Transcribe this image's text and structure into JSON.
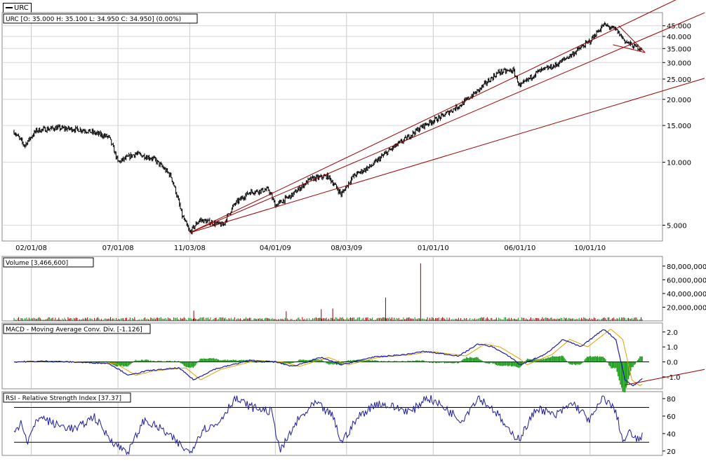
{
  "legend": {
    "symbol": "URC"
  },
  "colors": {
    "up": "#000000",
    "trend": "#9b0000",
    "macd": "#1c1c9c",
    "signal": "#d9a300",
    "hist": "#1a9e1a",
    "vol_up": "#1a8a1a",
    "vol_down": "#8b0000",
    "rsi": "#1c1c9c"
  },
  "chart_data": [
    {
      "type": "candlestick",
      "title": "URC [O: 35.000  H: 35.100  L: 34.950  C: 34.950] (0.00%)",
      "yscale": "log",
      "y_ticks": [
        "5.000",
        "10.000",
        "15.000",
        "20.000",
        "25.000",
        "30.000",
        "35.000",
        "40.000",
        "45.000"
      ],
      "y_tick_values": [
        5,
        10,
        15,
        20,
        25,
        30,
        35,
        40,
        45
      ],
      "ylim": [
        4.2,
        52
      ],
      "x_ticks": [
        "02/01/08",
        "07/01/08",
        "11/03/08",
        "04/01/09",
        "08/03/09",
        "01/01/10",
        "06/01/10",
        "10/01/10"
      ],
      "close_series": [
        {
          "date": "2008-01-02",
          "value": 14.0
        },
        {
          "date": "2008-01-20",
          "value": 12.0
        },
        {
          "date": "2008-02-10",
          "value": 14.2
        },
        {
          "date": "2008-03-15",
          "value": 14.6
        },
        {
          "date": "2008-05-01",
          "value": 14.3
        },
        {
          "date": "2008-06-15",
          "value": 13.2
        },
        {
          "date": "2008-07-01",
          "value": 10.0
        },
        {
          "date": "2008-08-01",
          "value": 11.0
        },
        {
          "date": "2008-09-01",
          "value": 10.4
        },
        {
          "date": "2008-10-01",
          "value": 8.6
        },
        {
          "date": "2008-10-20",
          "value": 5.6
        },
        {
          "date": "2008-11-03",
          "value": 4.6
        },
        {
          "date": "2008-11-20",
          "value": 5.3
        },
        {
          "date": "2008-12-31",
          "value": 5.0
        },
        {
          "date": "2009-01-20",
          "value": 6.3
        },
        {
          "date": "2009-02-15",
          "value": 7.2
        },
        {
          "date": "2009-03-20",
          "value": 7.4
        },
        {
          "date": "2009-04-01",
          "value": 6.2
        },
        {
          "date": "2009-05-01",
          "value": 7.0
        },
        {
          "date": "2009-06-01",
          "value": 8.3
        },
        {
          "date": "2009-07-01",
          "value": 8.6
        },
        {
          "date": "2009-07-25",
          "value": 7.0
        },
        {
          "date": "2009-08-15",
          "value": 8.6
        },
        {
          "date": "2009-09-15",
          "value": 9.6
        },
        {
          "date": "2009-10-15",
          "value": 11.3
        },
        {
          "date": "2009-11-15",
          "value": 13.0
        },
        {
          "date": "2009-12-15",
          "value": 15.0
        },
        {
          "date": "2010-01-15",
          "value": 16.5
        },
        {
          "date": "2010-02-20",
          "value": 19.0
        },
        {
          "date": "2010-03-20",
          "value": 22.0
        },
        {
          "date": "2010-04-25",
          "value": 27.0
        },
        {
          "date": "2010-05-20",
          "value": 27.5
        },
        {
          "date": "2010-06-01",
          "value": 23.0
        },
        {
          "date": "2010-07-01",
          "value": 27.0
        },
        {
          "date": "2010-08-01",
          "value": 29.0
        },
        {
          "date": "2010-09-01",
          "value": 33.0
        },
        {
          "date": "2010-10-01",
          "value": 38.0
        },
        {
          "date": "2010-10-25",
          "value": 45.5
        },
        {
          "date": "2010-11-15",
          "value": 43.0
        },
        {
          "date": "2010-12-01",
          "value": 38.0
        },
        {
          "date": "2010-12-15",
          "value": 36.0
        },
        {
          "date": "2010-12-31",
          "value": 34.95
        }
      ],
      "trendlines": [
        {
          "from": {
            "date": "2008-11-03",
            "value": 4.6
          },
          "to": {
            "date": "2011-01-12",
            "value": 52
          }
        },
        {
          "from": {
            "date": "2008-11-03",
            "value": 4.6
          },
          "to": {
            "date": "2011-01-12",
            "value": 40
          }
        },
        {
          "from": {
            "date": "2008-11-03",
            "value": 4.6
          },
          "to": {
            "date": "2011-01-12",
            "value": 21
          }
        },
        {
          "from": {
            "date": "2010-11-20",
            "value": 45.0
          },
          "to": {
            "date": "2011-01-05",
            "value": 33.5
          }
        },
        {
          "from": {
            "date": "2010-11-10",
            "value": 36.5
          },
          "to": {
            "date": "2011-01-05",
            "value": 33.5
          }
        }
      ]
    },
    {
      "type": "bar",
      "title": "Volume [3,466,600]",
      "y_ticks": [
        "20,000,000",
        "40,000,000",
        "60,000,000",
        "80,000,000"
      ],
      "y_tick_values": [
        20000000,
        40000000,
        60000000,
        80000000
      ],
      "ylim": [
        0,
        90000000
      ],
      "spikes": [
        {
          "date": "2008-11-10",
          "value": 15000000
        },
        {
          "date": "2009-04-20",
          "value": 14000000
        },
        {
          "date": "2009-06-20",
          "value": 17000000
        },
        {
          "date": "2009-07-10",
          "value": 18000000
        },
        {
          "date": "2009-10-10",
          "value": 34000000
        },
        {
          "date": "2009-12-10",
          "value": 84000000
        }
      ]
    },
    {
      "type": "line",
      "title": "MACD - Moving Average Conv. Div. [-1.126]",
      "y_ticks": [
        "-1.0",
        "0.0",
        "1.0",
        "2.0"
      ],
      "y_tick_values": [
        -1,
        0,
        1,
        2
      ],
      "ylim": [
        -1.8,
        2.6
      ],
      "macd_series": [
        {
          "date": "2008-01-02",
          "value": 0.0
        },
        {
          "date": "2008-03-01",
          "value": 0.05
        },
        {
          "date": "2008-06-15",
          "value": -0.1
        },
        {
          "date": "2008-07-20",
          "value": -0.9
        },
        {
          "date": "2008-08-20",
          "value": -0.6
        },
        {
          "date": "2008-10-15",
          "value": -0.4
        },
        {
          "date": "2008-11-10",
          "value": -1.2
        },
        {
          "date": "2008-12-15",
          "value": -0.5
        },
        {
          "date": "2009-02-15",
          "value": 0.1
        },
        {
          "date": "2009-04-01",
          "value": 0.0
        },
        {
          "date": "2009-05-01",
          "value": -0.3
        },
        {
          "date": "2009-06-20",
          "value": 0.3
        },
        {
          "date": "2009-07-25",
          "value": -0.2
        },
        {
          "date": "2009-09-15",
          "value": 0.3
        },
        {
          "date": "2009-11-15",
          "value": 0.5
        },
        {
          "date": "2009-12-15",
          "value": 0.7
        },
        {
          "date": "2010-02-15",
          "value": 0.4
        },
        {
          "date": "2010-03-20",
          "value": 1.2
        },
        {
          "date": "2010-04-15",
          "value": 1.0
        },
        {
          "date": "2010-05-20",
          "value": 0.2
        },
        {
          "date": "2010-06-01",
          "value": -0.2
        },
        {
          "date": "2010-07-15",
          "value": 0.5
        },
        {
          "date": "2010-08-15",
          "value": 1.5
        },
        {
          "date": "2010-09-15",
          "value": 1.0
        },
        {
          "date": "2010-10-25",
          "value": 2.2
        },
        {
          "date": "2010-11-15",
          "value": 1.5
        },
        {
          "date": "2010-12-01",
          "value": -1.2
        },
        {
          "date": "2010-12-15",
          "value": -1.6
        },
        {
          "date": "2010-12-31",
          "value": -1.126
        }
      ],
      "signal_offset_days": 12
    },
    {
      "type": "line",
      "title": "RSI - Relative Strength Index [37.37]",
      "y_ticks": [
        "20",
        "40",
        "60",
        "80"
      ],
      "y_tick_values": [
        20,
        40,
        60,
        80
      ],
      "ylim": [
        15,
        88
      ],
      "reference_lines": [
        30,
        70
      ],
      "rsi_series": [
        {
          "date": "2008-01-02",
          "value": 40
        },
        {
          "date": "2008-01-15",
          "value": 55
        },
        {
          "date": "2008-01-25",
          "value": 30
        },
        {
          "date": "2008-02-15",
          "value": 60
        },
        {
          "date": "2008-03-15",
          "value": 50
        },
        {
          "date": "2008-04-20",
          "value": 45
        },
        {
          "date": "2008-05-20",
          "value": 60
        },
        {
          "date": "2008-06-10",
          "value": 40
        },
        {
          "date": "2008-07-01",
          "value": 25
        },
        {
          "date": "2008-07-20",
          "value": 20
        },
        {
          "date": "2008-08-15",
          "value": 55
        },
        {
          "date": "2008-09-15",
          "value": 45
        },
        {
          "date": "2008-10-15",
          "value": 28
        },
        {
          "date": "2008-11-03",
          "value": 18
        },
        {
          "date": "2008-11-25",
          "value": 45
        },
        {
          "date": "2008-12-20",
          "value": 50
        },
        {
          "date": "2009-01-20",
          "value": 80
        },
        {
          "date": "2009-02-20",
          "value": 70
        },
        {
          "date": "2009-03-25",
          "value": 65
        },
        {
          "date": "2009-04-10",
          "value": 20
        },
        {
          "date": "2009-05-10",
          "value": 55
        },
        {
          "date": "2009-06-10",
          "value": 75
        },
        {
          "date": "2009-07-10",
          "value": 60
        },
        {
          "date": "2009-07-25",
          "value": 30
        },
        {
          "date": "2009-08-25",
          "value": 60
        },
        {
          "date": "2009-09-25",
          "value": 75
        },
        {
          "date": "2009-10-25",
          "value": 70
        },
        {
          "date": "2009-11-25",
          "value": 65
        },
        {
          "date": "2009-12-20",
          "value": 82
        },
        {
          "date": "2010-01-20",
          "value": 70
        },
        {
          "date": "2010-02-20",
          "value": 55
        },
        {
          "date": "2010-03-20",
          "value": 82
        },
        {
          "date": "2010-04-20",
          "value": 65
        },
        {
          "date": "2010-05-15",
          "value": 40
        },
        {
          "date": "2010-06-01",
          "value": 35
        },
        {
          "date": "2010-07-01",
          "value": 70
        },
        {
          "date": "2010-08-01",
          "value": 60
        },
        {
          "date": "2010-09-01",
          "value": 75
        },
        {
          "date": "2010-10-01",
          "value": 55
        },
        {
          "date": "2010-10-25",
          "value": 82
        },
        {
          "date": "2010-11-15",
          "value": 65
        },
        {
          "date": "2010-11-28",
          "value": 30
        },
        {
          "date": "2010-12-10",
          "value": 42
        },
        {
          "date": "2010-12-20",
          "value": 32
        },
        {
          "date": "2010-12-31",
          "value": 37.37
        }
      ]
    }
  ]
}
